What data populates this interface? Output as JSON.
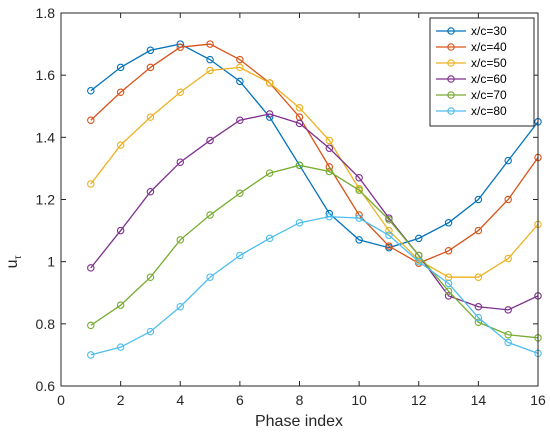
{
  "chart_data": {
    "type": "line",
    "xlabel": "Phase index",
    "ylabel": "u",
    "ylabel_subscript": "τ",
    "xlim": [
      0,
      16
    ],
    "ylim": [
      0.6,
      1.8
    ],
    "xticks": [
      "0",
      "2",
      "4",
      "6",
      "8",
      "10",
      "12",
      "14",
      "16"
    ],
    "yticks": [
      "0.6",
      "0.8",
      "1",
      "1.2",
      "1.4",
      "1.6",
      "1.8"
    ],
    "grid": false,
    "legend_position": "top-right",
    "marker": "open-circle",
    "x": [
      1,
      2,
      3,
      4,
      5,
      6,
      7,
      8,
      9,
      10,
      11,
      12,
      13,
      14,
      15,
      16
    ],
    "series": [
      {
        "name": "x/c=30",
        "color": "#0072BD",
        "values": [
          1.55,
          1.625,
          1.68,
          1.7,
          1.65,
          1.58,
          1.465,
          1.31,
          1.155,
          1.07,
          1.045,
          1.075,
          1.125,
          1.2,
          1.325,
          1.45
        ]
      },
      {
        "name": "x/c=40",
        "color": "#D95319",
        "values": [
          1.455,
          1.545,
          1.625,
          1.69,
          1.7,
          1.65,
          1.575,
          1.465,
          1.305,
          1.15,
          1.05,
          0.995,
          1.035,
          1.1,
          1.2,
          1.335
        ]
      },
      {
        "name": "x/c=50",
        "color": "#EDB120",
        "values": [
          1.25,
          1.375,
          1.465,
          1.545,
          1.615,
          1.625,
          1.575,
          1.495,
          1.39,
          1.235,
          1.1,
          1.005,
          0.95,
          0.95,
          1.01,
          1.12
        ]
      },
      {
        "name": "x/c=60",
        "color": "#7E2F8E",
        "values": [
          0.98,
          1.1,
          1.225,
          1.32,
          1.39,
          1.455,
          1.475,
          1.445,
          1.365,
          1.27,
          1.14,
          1.02,
          0.89,
          0.855,
          0.845,
          0.89
        ]
      },
      {
        "name": "x/c=70",
        "color": "#77AC30",
        "values": [
          0.795,
          0.86,
          0.95,
          1.07,
          1.15,
          1.22,
          1.285,
          1.31,
          1.29,
          1.23,
          1.135,
          1.02,
          0.905,
          0.805,
          0.765,
          0.755
        ]
      },
      {
        "name": "x/c=80",
        "color": "#4DBEEE",
        "values": [
          0.7,
          0.725,
          0.775,
          0.855,
          0.95,
          1.02,
          1.075,
          1.125,
          1.145,
          1.14,
          1.085,
          1.0,
          0.93,
          0.82,
          0.74,
          0.705
        ]
      }
    ]
  }
}
